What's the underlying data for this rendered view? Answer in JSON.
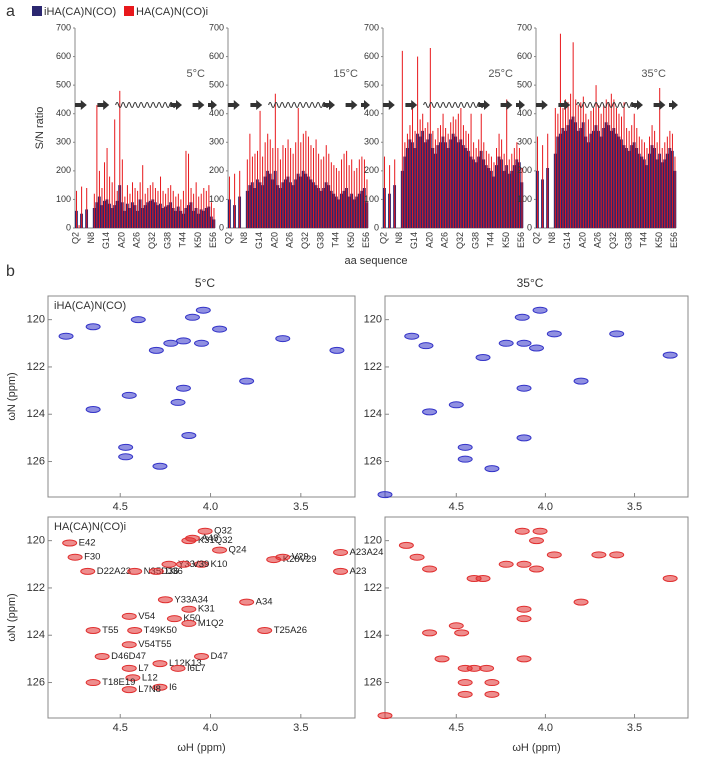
{
  "panel_labels": [
    "a",
    "b"
  ],
  "column_titles": [
    "5°C",
    "35°C"
  ],
  "chart_data": [
    {
      "type": "bar",
      "annotation": "5°C",
      "ylabel": "S/N ratio",
      "xlabel": "aa sequence",
      "categories": [
        "Q2",
        null,
        null,
        null,
        null,
        null,
        "N8",
        null,
        null,
        null,
        null,
        null,
        "G14",
        null,
        null,
        null,
        null,
        null,
        "A20",
        null,
        null,
        null,
        null,
        null,
        "A26",
        null,
        null,
        null,
        null,
        null,
        "Q32",
        null,
        null,
        null,
        null,
        null,
        "G38",
        null,
        null,
        null,
        null,
        null,
        "T44",
        null,
        null,
        null,
        null,
        null,
        "K50",
        null,
        null,
        null,
        null,
        null,
        "E56"
      ],
      "ylim": [
        0,
        700
      ],
      "yticks": [
        0,
        100,
        200,
        300,
        400,
        500,
        600,
        700
      ],
      "series": [
        {
          "name": "iHA(CA)N(CO)",
          "color": "#2b2770",
          "values": [
            60,
            0,
            50,
            0,
            65,
            0,
            0,
            70,
            90,
            110,
            80,
            95,
            100,
            85,
            70,
            80,
            95,
            150,
            90,
            60,
            85,
            70,
            90,
            80,
            60,
            100,
            70,
            80,
            90,
            95,
            100,
            90,
            80,
            85,
            70,
            75,
            80,
            90,
            70,
            60,
            75,
            60,
            50,
            70,
            80,
            90,
            60,
            70,
            50,
            65,
            60,
            70,
            75,
            40,
            30
          ]
        },
        {
          "name": "HA(CA)N(CO)i",
          "color": "#e8181c",
          "values": [
            130,
            10,
            145,
            0,
            140,
            0,
            0,
            120,
            430,
            200,
            140,
            230,
            280,
            180,
            160,
            380,
            130,
            480,
            240,
            110,
            150,
            120,
            160,
            140,
            130,
            160,
            220,
            120,
            140,
            150,
            160,
            140,
            130,
            180,
            130,
            120,
            140,
            150,
            130,
            110,
            120,
            100,
            130,
            270,
            260,
            140,
            120,
            160,
            110,
            120,
            140,
            130,
            150,
            90,
            70
          ]
        }
      ]
    },
    {
      "type": "bar",
      "annotation": "15°C",
      "categories": [
        "Q2",
        null,
        null,
        null,
        null,
        null,
        "N8",
        null,
        null,
        null,
        null,
        null,
        "G14",
        null,
        null,
        null,
        null,
        null,
        "A20",
        null,
        null,
        null,
        null,
        null,
        "A26",
        null,
        null,
        null,
        null,
        null,
        "Q32",
        null,
        null,
        null,
        null,
        null,
        "G38",
        null,
        null,
        null,
        null,
        null,
        "T44",
        null,
        null,
        null,
        null,
        null,
        "K50",
        null,
        null,
        null,
        null,
        null,
        "E56"
      ],
      "ylim": [
        0,
        700
      ],
      "yticks": [
        0,
        100,
        200,
        300,
        400,
        500,
        600,
        700
      ],
      "series": [
        {
          "color": "#2b2770",
          "values": [
            100,
            0,
            80,
            0,
            110,
            0,
            0,
            130,
            150,
            160,
            140,
            170,
            160,
            150,
            180,
            200,
            190,
            170,
            200,
            150,
            140,
            160,
            170,
            180,
            160,
            150,
            170,
            190,
            180,
            200,
            190,
            180,
            170,
            160,
            150,
            140,
            130,
            140,
            160,
            150,
            130,
            120,
            110,
            100,
            120,
            130,
            140,
            110,
            120,
            100,
            110,
            120,
            130,
            140,
            90
          ]
        },
        {
          "color": "#e8181c",
          "values": [
            180,
            0,
            190,
            0,
            200,
            0,
            0,
            240,
            330,
            250,
            260,
            270,
            410,
            250,
            300,
            330,
            310,
            280,
            470,
            280,
            240,
            290,
            280,
            310,
            280,
            260,
            300,
            420,
            300,
            330,
            340,
            320,
            290,
            280,
            310,
            260,
            240,
            250,
            290,
            260,
            230,
            220,
            210,
            200,
            240,
            260,
            270,
            220,
            240,
            200,
            210,
            240,
            250,
            240,
            170
          ]
        }
      ]
    },
    {
      "type": "bar",
      "annotation": "25°C",
      "categories": [
        "Q2",
        null,
        null,
        null,
        null,
        null,
        "N8",
        null,
        null,
        null,
        null,
        null,
        "G14",
        null,
        null,
        null,
        null,
        null,
        "A20",
        null,
        null,
        null,
        null,
        null,
        "A26",
        null,
        null,
        null,
        null,
        null,
        "Q32",
        null,
        null,
        null,
        null,
        null,
        "G38",
        null,
        null,
        null,
        null,
        null,
        "T44",
        null,
        null,
        null,
        null,
        null,
        "K50",
        null,
        null,
        null,
        null,
        null,
        "E56"
      ],
      "ylim": [
        0,
        700
      ],
      "yticks": [
        0,
        100,
        200,
        300,
        400,
        500,
        600,
        700
      ],
      "series": [
        {
          "color": "#2b2770",
          "values": [
            140,
            0,
            120,
            0,
            150,
            0,
            0,
            200,
            250,
            280,
            310,
            300,
            280,
            330,
            320,
            340,
            300,
            310,
            330,
            280,
            260,
            290,
            300,
            320,
            300,
            280,
            310,
            330,
            320,
            300,
            310,
            290,
            280,
            270,
            250,
            240,
            230,
            250,
            270,
            240,
            220,
            210,
            200,
            180,
            220,
            250,
            240,
            200,
            220,
            190,
            200,
            220,
            240,
            230,
            160
          ]
        },
        {
          "color": "#e8181c",
          "values": [
            250,
            0,
            220,
            0,
            240,
            0,
            0,
            620,
            300,
            330,
            360,
            420,
            340,
            600,
            380,
            400,
            350,
            370,
            630,
            340,
            310,
            350,
            360,
            400,
            350,
            330,
            370,
            390,
            380,
            400,
            420,
            360,
            340,
            330,
            400,
            300,
            280,
            310,
            400,
            300,
            270,
            260,
            250,
            230,
            280,
            330,
            310,
            260,
            450,
            240,
            260,
            280,
            300,
            280,
            210
          ]
        }
      ]
    },
    {
      "type": "bar",
      "annotation": "35°C",
      "categories": [
        "Q2",
        null,
        null,
        null,
        null,
        null,
        "N8",
        null,
        null,
        null,
        null,
        null,
        "G14",
        null,
        null,
        null,
        null,
        null,
        "A20",
        null,
        null,
        null,
        null,
        null,
        "A26",
        null,
        null,
        null,
        null,
        null,
        "Q32",
        null,
        null,
        null,
        null,
        null,
        "G38",
        null,
        null,
        null,
        null,
        null,
        "T44",
        null,
        null,
        null,
        null,
        null,
        "K50",
        null,
        null,
        null,
        null,
        null,
        "E56"
      ],
      "ylim": [
        0,
        700
      ],
      "yticks": [
        0,
        100,
        200,
        300,
        400,
        500,
        600,
        700
      ],
      "series": [
        {
          "color": "#2b2770",
          "values": [
            200,
            0,
            170,
            0,
            210,
            0,
            0,
            260,
            320,
            330,
            350,
            340,
            360,
            380,
            390,
            370,
            340,
            350,
            370,
            320,
            300,
            330,
            340,
            360,
            340,
            320,
            350,
            370,
            360,
            340,
            350,
            330,
            320,
            310,
            290,
            280,
            270,
            290,
            300,
            280,
            260,
            250,
            240,
            220,
            260,
            290,
            280,
            240,
            260,
            230,
            240,
            260,
            280,
            270,
            200
          ]
        },
        {
          "color": "#e8181c",
          "values": [
            320,
            0,
            290,
            0,
            330,
            0,
            0,
            420,
            400,
            680,
            420,
            450,
            440,
            470,
            650,
            450,
            430,
            440,
            460,
            400,
            380,
            410,
            420,
            500,
            430,
            400,
            430,
            450,
            440,
            470,
            450,
            420,
            400,
            390,
            440,
            350,
            340,
            360,
            400,
            350,
            320,
            310,
            300,
            280,
            320,
            360,
            340,
            300,
            490,
            280,
            300,
            320,
            340,
            330,
            250
          ]
        }
      ]
    },
    {
      "type": "scatter",
      "title": "iHA(CA)N(CO)",
      "ylabel": "ωN (ppm)",
      "color": "#3434c8",
      "xlim": [
        4.9,
        3.2
      ],
      "ylim": [
        127.5,
        119
      ],
      "xticks": [
        4.5,
        {
          "value": 4,
          "label": "4.0"
        },
        3.5
      ],
      "yticks": [
        120,
        122,
        124,
        126
      ],
      "x": [
        4.8,
        4.65,
        4.4,
        4.3,
        4.22,
        4.15,
        4.1,
        4.04,
        4.05,
        3.95,
        3.6,
        3.3,
        3.8,
        4.15,
        4.45,
        4.65,
        4.18,
        4.12,
        4.47,
        4.47,
        4.28
      ],
      "values": [
        120.7,
        120.3,
        120.0,
        121.3,
        121.0,
        120.9,
        119.9,
        119.6,
        121.0,
        120.4,
        120.8,
        121.3,
        122.6,
        122.9,
        123.2,
        123.8,
        123.5,
        124.9,
        125.4,
        125.8,
        126.2
      ]
    },
    {
      "type": "scatter",
      "color": "#3434c8",
      "xlim": [
        4.9,
        3.2
      ],
      "ylim": [
        127.5,
        119
      ],
      "xticks": [
        4.5,
        {
          "value": 4,
          "label": "4.0"
        },
        3.5
      ],
      "yticks": [
        120,
        122,
        124,
        126
      ],
      "x": [
        4.75,
        4.67,
        4.13,
        4.03,
        3.95,
        3.6,
        3.3,
        4.22,
        4.12,
        4.05,
        4.35,
        4.12,
        3.8,
        4.5,
        4.65,
        4.12,
        4.45,
        4.45,
        4.3,
        4.9
      ],
      "values": [
        120.7,
        121.1,
        119.9,
        119.6,
        120.6,
        120.6,
        121.5,
        121.0,
        121.0,
        121.2,
        121.6,
        122.9,
        122.6,
        123.6,
        123.9,
        125.0,
        125.4,
        125.9,
        126.3,
        127.4
      ]
    },
    {
      "type": "scatter",
      "title": "HA(CA)N(CO)i",
      "ylabel": "ωN (ppm)",
      "xlabel": "ωH (ppm)",
      "color": "#e03030",
      "xlim": [
        4.9,
        3.2
      ],
      "ylim": [
        127.5,
        119
      ],
      "xticks": [
        4.5,
        {
          "value": 4,
          "label": "4.0"
        },
        3.5
      ],
      "yticks": [
        120,
        122,
        124,
        126
      ],
      "labels": [
        "E42",
        "F30",
        "D22A23",
        "N35D36",
        "D36",
        "Y33",
        "K31Q32",
        "Q32",
        "A48",
        "Q24",
        "K10",
        "V39",
        "K28V29",
        "V29",
        "A23A24",
        "A23",
        "Y33A34",
        "A34",
        "K31",
        "K50",
        "V54",
        "M1Q2",
        "T49K50",
        "T25A26",
        "T55",
        "V54T55",
        "D46D47",
        "D47",
        "L12K13",
        "I6L7",
        "L7",
        "L12",
        "I6",
        "T18E19",
        "L7N8"
      ],
      "x": [
        4.78,
        4.75,
        4.68,
        4.42,
        4.3,
        4.23,
        4.12,
        4.03,
        4.1,
        3.95,
        4.05,
        4.15,
        3.65,
        3.6,
        3.28,
        3.28,
        4.25,
        3.8,
        4.12,
        4.2,
        4.45,
        4.12,
        4.42,
        3.7,
        4.65,
        4.45,
        4.6,
        4.05,
        4.28,
        4.18,
        4.45,
        4.43,
        4.28,
        4.65,
        4.45
      ],
      "values": [
        120.1,
        120.7,
        121.3,
        121.3,
        121.3,
        121.0,
        120.0,
        119.6,
        119.9,
        120.4,
        121.0,
        121.0,
        120.8,
        120.7,
        120.5,
        121.3,
        122.5,
        122.6,
        122.9,
        123.3,
        123.2,
        123.5,
        123.8,
        123.8,
        123.8,
        124.4,
        124.9,
        124.9,
        125.2,
        125.4,
        125.4,
        125.8,
        126.2,
        126.0,
        126.3
      ]
    },
    {
      "type": "scatter",
      "xlabel": "ωH (ppm)",
      "color": "#e03030",
      "xlim": [
        4.9,
        3.2
      ],
      "ylim": [
        127.5,
        119
      ],
      "xticks": [
        4.5,
        {
          "value": 4,
          "label": "4.0"
        },
        3.5
      ],
      "yticks": [
        120,
        122,
        124,
        126
      ],
      "x": [
        4.78,
        4.72,
        4.65,
        4.13,
        4.03,
        4.05,
        3.95,
        3.7,
        3.6,
        3.3,
        4.22,
        4.12,
        4.05,
        4.35,
        4.4,
        4.12,
        4.12,
        3.8,
        4.5,
        4.47,
        4.65,
        4.12,
        4.45,
        4.4,
        4.45,
        4.3,
        4.33,
        4.3,
        4.45,
        4.58,
        4.9
      ],
      "values": [
        120.2,
        120.7,
        121.2,
        119.6,
        119.6,
        120.0,
        120.6,
        120.6,
        120.6,
        121.6,
        121.0,
        121.0,
        121.2,
        121.6,
        121.6,
        122.9,
        123.3,
        122.6,
        123.6,
        123.9,
        123.9,
        125.0,
        125.4,
        125.4,
        126.0,
        126.0,
        125.4,
        126.5,
        126.5,
        125.0,
        127.4
      ]
    }
  ]
}
